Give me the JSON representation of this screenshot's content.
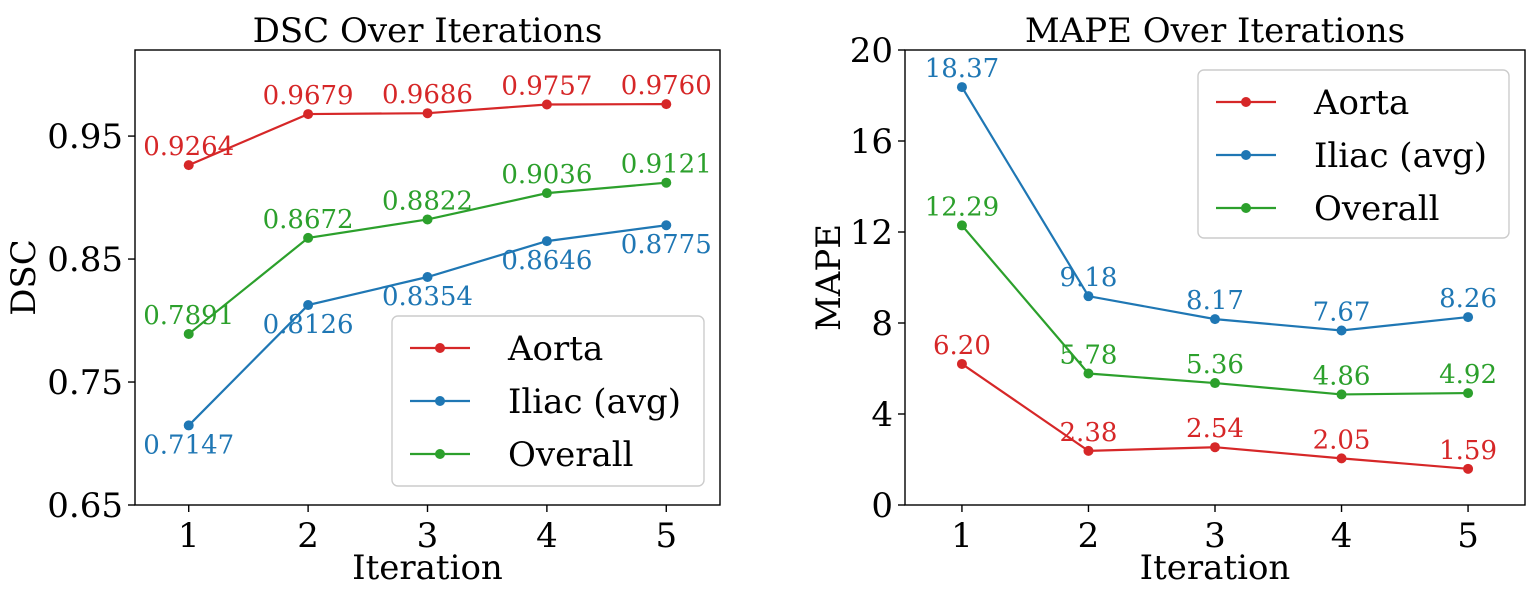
{
  "colors": {
    "Aorta": "#d62728",
    "Iliac (avg)": "#1f77b4",
    "Overall": "#2ca02c",
    "axis": "#000000",
    "legend_border": "#cccccc"
  },
  "chart_data": [
    {
      "type": "line",
      "title": "DSC Over Iterations",
      "xlabel": "Iteration",
      "ylabel": "DSC",
      "x": [
        1,
        2,
        3,
        4,
        5
      ],
      "xlim": [
        0.55,
        5.45
      ],
      "ylim": [
        0.65,
        1.02
      ],
      "yticks": [
        0.65,
        0.75,
        0.85,
        0.95
      ],
      "ytick_labels": [
        "0.65",
        "0.75",
        "0.85",
        "0.95"
      ],
      "xtick_labels": [
        "1",
        "2",
        "3",
        "4",
        "5"
      ],
      "grid": false,
      "legend_position": "bottom-right",
      "series": [
        {
          "name": "Aorta",
          "values": [
            0.9264,
            0.9679,
            0.9686,
            0.9757,
            0.976
          ],
          "labels": [
            "0.9264",
            "0.9679",
            "0.9686",
            "0.9757",
            "0.9760"
          ],
          "label_side": [
            "above",
            "above",
            "above",
            "above",
            "above"
          ]
        },
        {
          "name": "Iliac (avg)",
          "values": [
            0.7147,
            0.8126,
            0.8354,
            0.8646,
            0.8775
          ],
          "labels": [
            "0.7147",
            "0.8126",
            "0.8354",
            "0.8646",
            "0.8775"
          ],
          "label_side": [
            "below",
            "below",
            "below",
            "below",
            "below"
          ]
        },
        {
          "name": "Overall",
          "values": [
            0.7891,
            0.8672,
            0.8822,
            0.9036,
            0.9121
          ],
          "labels": [
            "0.7891",
            "0.8672",
            "0.8822",
            "0.9036",
            "0.9121"
          ],
          "label_side": [
            "above",
            "above",
            "above",
            "above",
            "above"
          ]
        }
      ]
    },
    {
      "type": "line",
      "title": "MAPE Over Iterations",
      "xlabel": "Iteration",
      "ylabel": "MAPE",
      "x": [
        1,
        2,
        3,
        4,
        5
      ],
      "xlim": [
        0.55,
        5.45
      ],
      "ylim": [
        0,
        20
      ],
      "yticks": [
        0,
        4,
        8,
        12,
        16,
        20
      ],
      "ytick_labels": [
        "0",
        "4",
        "8",
        "12",
        "16",
        "20"
      ],
      "xtick_labels": [
        "1",
        "2",
        "3",
        "4",
        "5"
      ],
      "grid": false,
      "legend_position": "top-right",
      "series": [
        {
          "name": "Aorta",
          "values": [
            6.2,
            2.38,
            2.54,
            2.05,
            1.59
          ],
          "labels": [
            "6.20",
            "2.38",
            "2.54",
            "2.05",
            "1.59"
          ],
          "label_side": [
            "above",
            "above",
            "above",
            "above",
            "above"
          ]
        },
        {
          "name": "Iliac (avg)",
          "values": [
            18.37,
            9.18,
            8.17,
            7.67,
            8.26
          ],
          "labels": [
            "18.37",
            "9.18",
            "8.17",
            "7.67",
            "8.26"
          ],
          "label_side": [
            "above",
            "above",
            "above",
            "above",
            "above"
          ]
        },
        {
          "name": "Overall",
          "values": [
            12.29,
            5.78,
            5.36,
            4.86,
            4.92
          ],
          "labels": [
            "12.29",
            "5.78",
            "5.36",
            "4.86",
            "4.92"
          ],
          "label_side": [
            "above",
            "above",
            "above",
            "above",
            "above"
          ]
        }
      ]
    }
  ]
}
